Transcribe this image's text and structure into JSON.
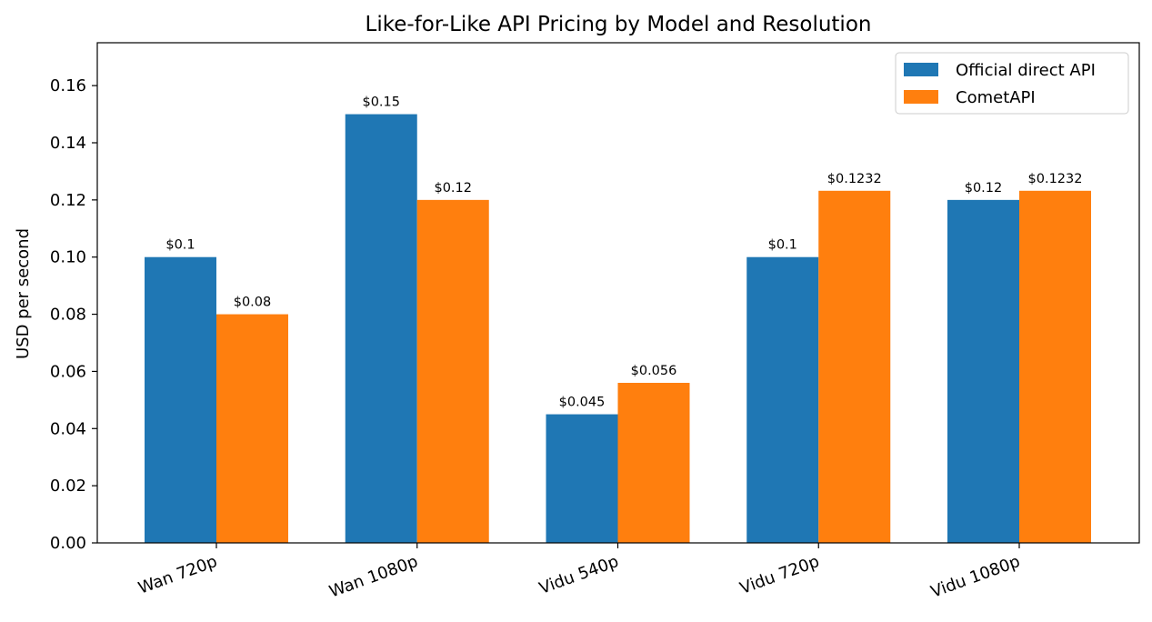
{
  "chart_data": {
    "type": "bar",
    "title": "Like-for-Like API Pricing by Model and Resolution",
    "xlabel": "",
    "ylabel": "USD per second",
    "categories": [
      "Wan 720p",
      "Wan 1080p",
      "Vidu 540p",
      "Vidu 720p",
      "Vidu 1080p"
    ],
    "series": [
      {
        "name": "Official direct API",
        "color": "#1f77b4",
        "values": [
          0.1,
          0.15,
          0.045,
          0.1,
          0.12
        ],
        "labels": [
          "$0.1",
          "$0.15",
          "$0.045",
          "$0.1",
          "$0.12"
        ]
      },
      {
        "name": "CometAPI",
        "color": "#ff7f0e",
        "values": [
          0.08,
          0.12,
          0.056,
          0.1232,
          0.1232
        ],
        "labels": [
          "$0.08",
          "$0.12",
          "$0.056",
          "$0.1232",
          "$0.1232"
        ]
      }
    ],
    "ylim": [
      0,
      0.175
    ],
    "yticks": [
      0,
      0.02,
      0.04,
      0.06,
      0.08,
      0.1,
      0.12,
      0.14,
      0.16
    ],
    "ytick_labels": [
      "0.00",
      "0.02",
      "0.04",
      "0.06",
      "0.08",
      "0.10",
      "0.12",
      "0.14",
      "0.16"
    ],
    "grid": false,
    "legend_position": "top-right"
  }
}
